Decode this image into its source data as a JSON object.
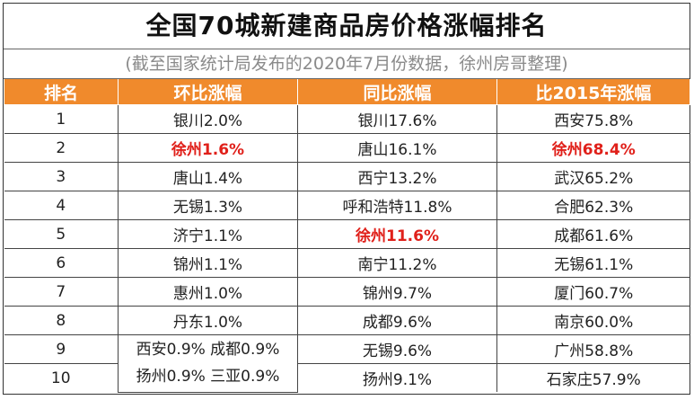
{
  "title": "全国70城新建商品房价格涨幅排名",
  "subtitle": "(截至国家统计局发布的2020年7月份数据，徐州房哥整理)",
  "colors": {
    "header_bg": "#f08a2c",
    "highlight": "#e0201a"
  },
  "headers": [
    "排名",
    "环比涨幅",
    "同比涨幅",
    "比2015年涨幅"
  ],
  "rows": [
    {
      "rank": "1",
      "mom": "银川2.0%",
      "yoy": "银川17.6%",
      "vs2015": "西安75.8%"
    },
    {
      "rank": "2",
      "mom": "徐州1.6%",
      "yoy": "唐山16.1%",
      "vs2015": "徐州68.4%"
    },
    {
      "rank": "3",
      "mom": "唐山1.4%",
      "yoy": "西宁13.2%",
      "vs2015": "武汉65.2%"
    },
    {
      "rank": "4",
      "mom": "无锡1.3%",
      "yoy": "呼和浩特11.8%",
      "vs2015": "合肥62.3%"
    },
    {
      "rank": "5",
      "mom": "济宁1.1%",
      "yoy": "徐州11.6%",
      "vs2015": "成都61.6%"
    },
    {
      "rank": "6",
      "mom": "锦州1.1%",
      "yoy": "南宁11.2%",
      "vs2015": "无锡61.1%"
    },
    {
      "rank": "7",
      "mom": "惠州1.0%",
      "yoy": "锦州9.7%",
      "vs2015": "厦门60.7%"
    },
    {
      "rank": "8",
      "mom": "丹东1.0%",
      "yoy": "成都9.6%",
      "vs2015": "南京60.0%"
    },
    {
      "rank": "9",
      "yoy": "无锡9.6%",
      "vs2015": "广州58.8%"
    },
    {
      "rank": "10",
      "yoy": "扬州9.1%",
      "vs2015": "石家庄57.9%"
    }
  ],
  "merged_mom_9_10": {
    "line1": "西安0.9% 成都0.9%",
    "line2": "扬州0.9% 三亚0.9%"
  }
}
